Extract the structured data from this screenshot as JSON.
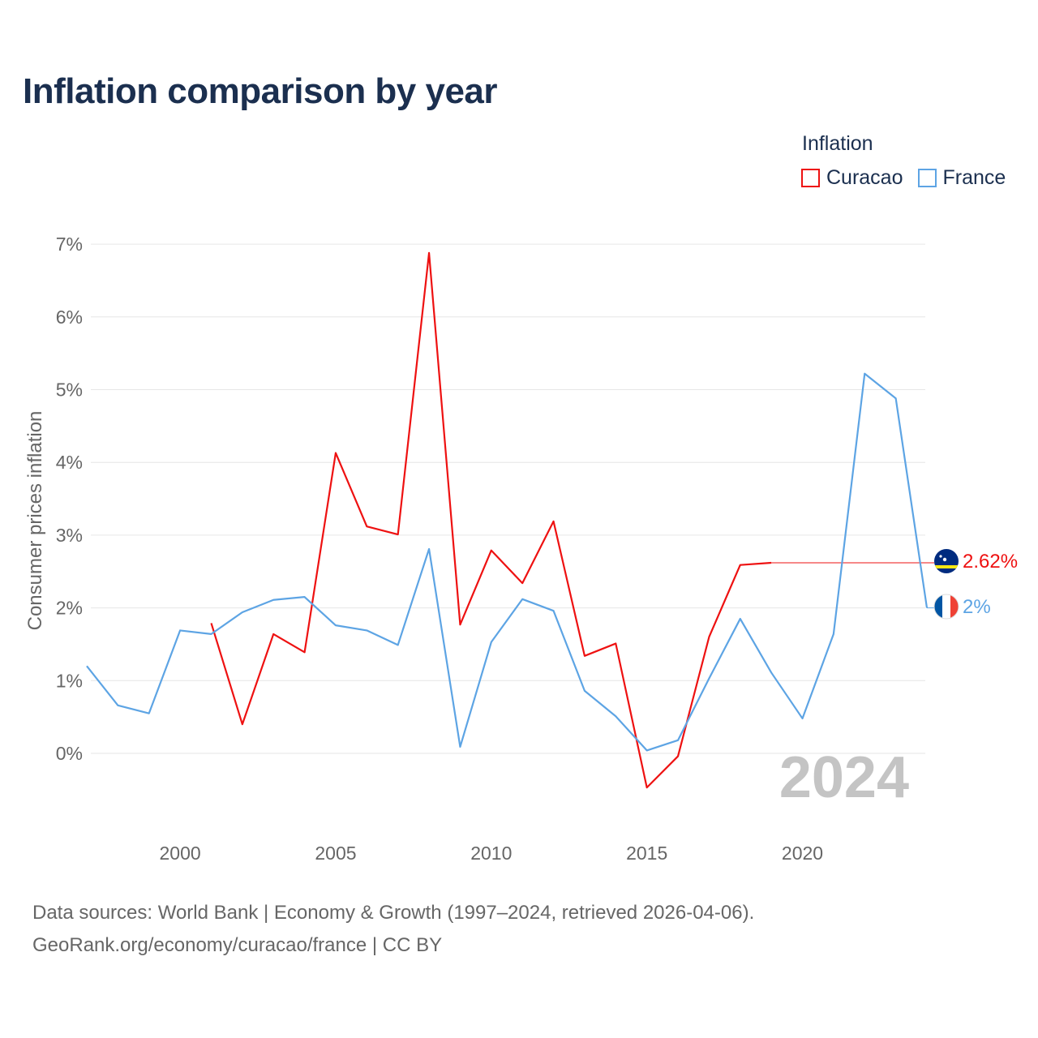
{
  "title": "Inflation comparison by year",
  "legend": {
    "title": "Inflation",
    "items": [
      {
        "name": "Curacao",
        "color": "#ee1111"
      },
      {
        "name": "France",
        "color": "#5da4e4"
      }
    ]
  },
  "source": {
    "line1": "Data sources: World Bank | Economy & Growth (1997–2024, retrieved 2026-04-06).",
    "line2": "GeoRank.org/economy/curacao/france | CC BY"
  },
  "chart_data": {
    "type": "line",
    "title": "Inflation comparison by year",
    "xlabel": "",
    "ylabel": "Consumer prices inflation",
    "xlim": [
      1997,
      2024
    ],
    "ylim": [
      -0.9,
      7.0
    ],
    "grid": true,
    "x_ticks": [
      2000,
      2005,
      2010,
      2015,
      2020
    ],
    "x_tick_labels": [
      "2000",
      "2005",
      "2010",
      "2015",
      "2020"
    ],
    "y_ticks": [
      0,
      1,
      2,
      3,
      4,
      5,
      6,
      7
    ],
    "y_tick_labels": [
      "0%",
      "1%",
      "2%",
      "3%",
      "4%",
      "5%",
      "6%",
      "7%"
    ],
    "watermark": "2024",
    "legend_position": "top-right",
    "series": [
      {
        "name": "Curacao",
        "color": "#ee1111",
        "x": [
          2001,
          2002,
          2003,
          2004,
          2005,
          2006,
          2007,
          2008,
          2009,
          2010,
          2011,
          2012,
          2013,
          2014,
          2015,
          2016,
          2017,
          2018,
          2019
        ],
        "values": [
          1.79,
          0.4,
          1.64,
          1.39,
          4.13,
          3.12,
          3.01,
          6.88,
          1.77,
          2.79,
          2.34,
          3.19,
          1.34,
          1.51,
          -0.47,
          -0.04,
          1.6,
          2.59,
          2.62
        ],
        "end_label": "2.62%",
        "end_value": 2.62,
        "flag": "curacao-flag"
      },
      {
        "name": "France",
        "color": "#5da4e4",
        "x": [
          1997,
          1998,
          1999,
          2000,
          2001,
          2002,
          2003,
          2004,
          2005,
          2006,
          2007,
          2008,
          2009,
          2010,
          2011,
          2012,
          2013,
          2014,
          2015,
          2016,
          2017,
          2018,
          2019,
          2020,
          2021,
          2022,
          2023,
          2024
        ],
        "values": [
          1.2,
          0.66,
          0.55,
          1.69,
          1.64,
          1.94,
          2.11,
          2.15,
          1.76,
          1.69,
          1.49,
          2.81,
          0.09,
          1.53,
          2.12,
          1.96,
          0.86,
          0.51,
          0.04,
          0.18,
          1.03,
          1.85,
          1.11,
          0.48,
          1.64,
          5.22,
          4.88,
          2.0
        ],
        "end_label": "2%",
        "end_value": 2.0,
        "flag": "france-flag"
      }
    ]
  }
}
